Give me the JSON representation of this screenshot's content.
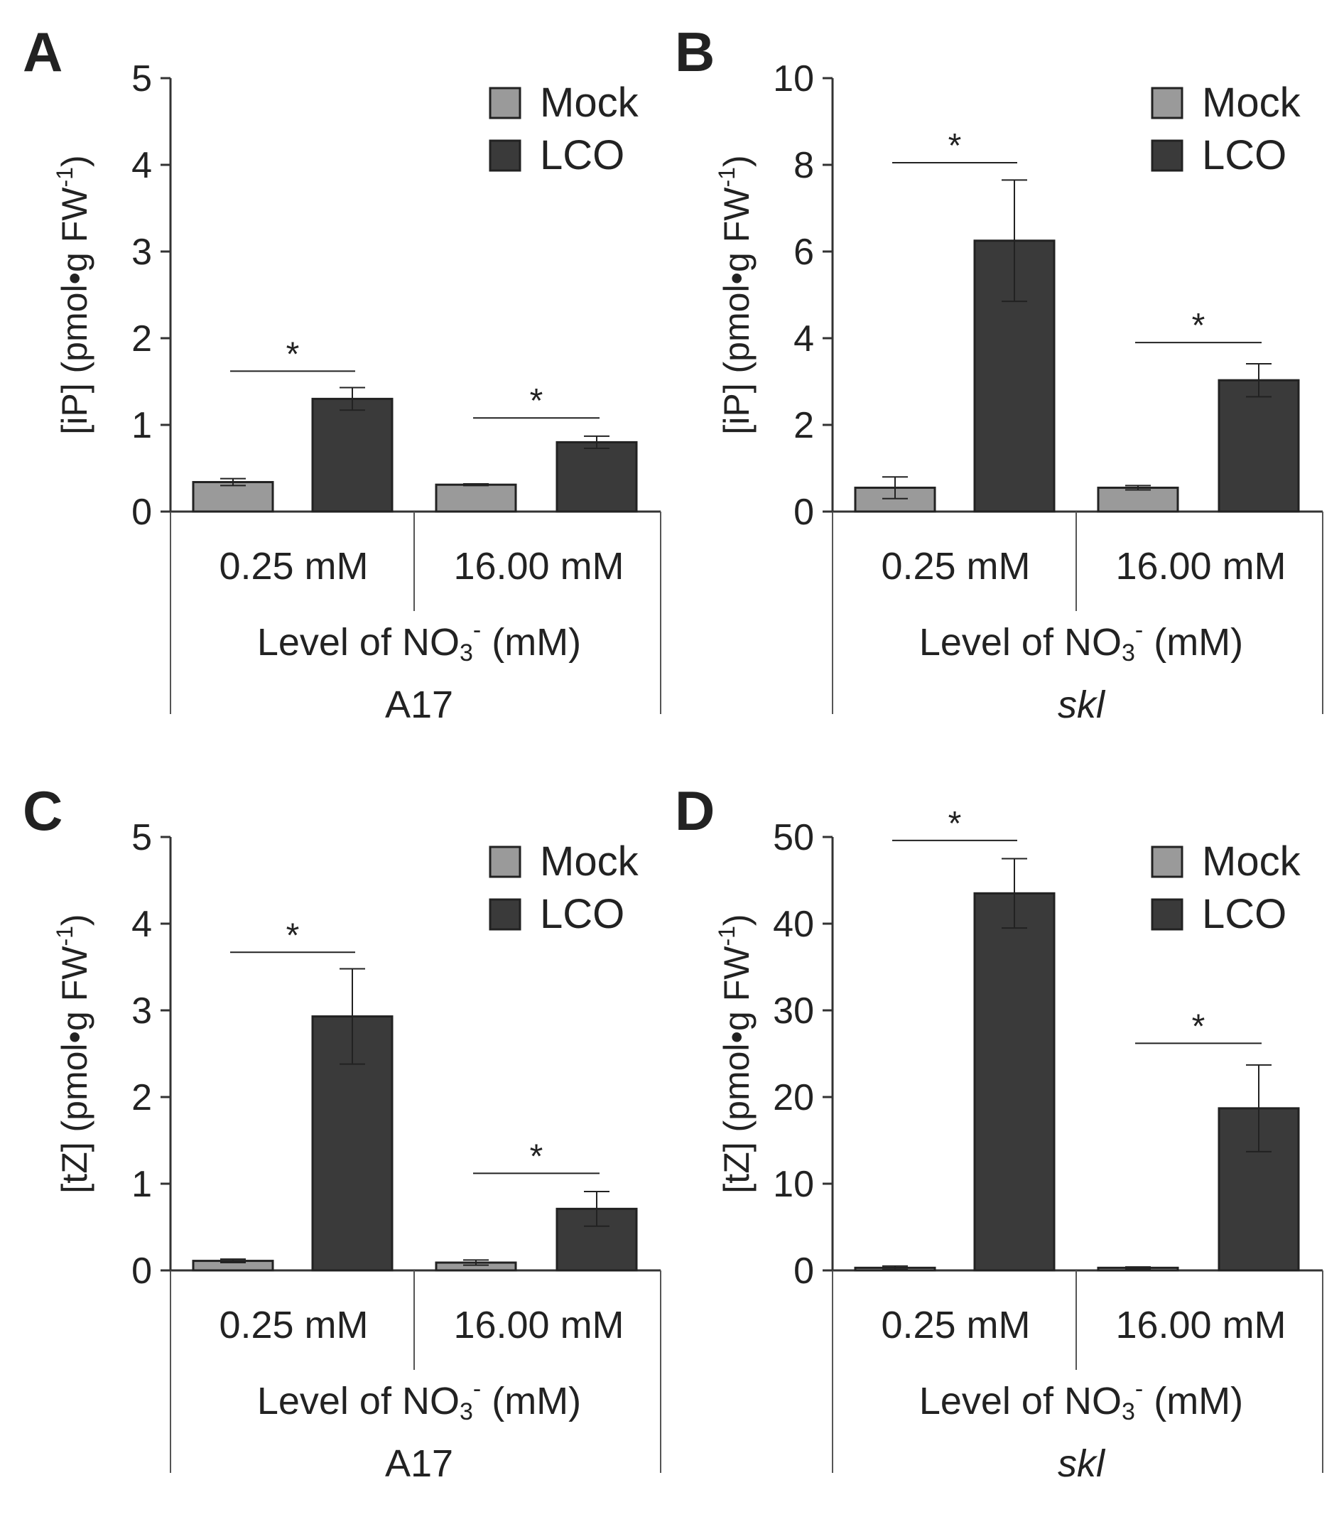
{
  "chart_data": [
    {
      "panel": "A",
      "type": "bar",
      "categories": [
        "0.25 mM",
        "16.00 mM"
      ],
      "series": [
        {
          "name": "Mock",
          "color": "#9a9a9a",
          "values": [
            0.34,
            0.31
          ],
          "errors": [
            0.04,
            0.01
          ]
        },
        {
          "name": "LCO",
          "color": "#3a3a3a",
          "values": [
            1.3,
            0.8
          ],
          "errors": [
            0.13,
            0.07
          ]
        }
      ],
      "ylim": [
        0,
        5
      ],
      "yticks": [
        "0",
        "1",
        "2",
        "3",
        "4",
        "5"
      ],
      "ylabel_main": "[iP] (pmol•g FW",
      "ylabel_sup": "-1",
      "ylabel_end": ")",
      "xlabel_main": "Level of NO",
      "xlabel_sub": "3",
      "xlabel_sup": "-",
      "xlabel_end": " (mM)",
      "group": "A17",
      "group_italic": false,
      "significance": [
        {
          "label": "*",
          "y": 1.62
        },
        {
          "label": "*",
          "y": 1.08
        }
      ],
      "legend": [
        "Mock",
        "LCO"
      ]
    },
    {
      "panel": "B",
      "type": "bar",
      "categories": [
        "0.25 mM",
        "16.00 mM"
      ],
      "series": [
        {
          "name": "Mock",
          "color": "#9a9a9a",
          "values": [
            0.55,
            0.55
          ],
          "errors": [
            0.25,
            0.05
          ]
        },
        {
          "name": "LCO",
          "color": "#3a3a3a",
          "values": [
            6.25,
            3.03
          ],
          "errors": [
            1.4,
            0.38
          ]
        }
      ],
      "ylim": [
        0,
        10
      ],
      "yticks": [
        "0",
        "2",
        "4",
        "6",
        "8",
        "10"
      ],
      "ylabel_main": "[iP] (pmol•g FW",
      "ylabel_sup": "-1",
      "ylabel_end": ")",
      "xlabel_main": "Level of NO",
      "xlabel_sub": "3",
      "xlabel_sup": "-",
      "xlabel_end": " (mM)",
      "group": "skl",
      "group_italic": true,
      "significance": [
        {
          "label": "*",
          "y": 8.05
        },
        {
          "label": "*",
          "y": 3.9
        }
      ],
      "legend": [
        "Mock",
        "LCO"
      ]
    },
    {
      "panel": "C",
      "type": "bar",
      "categories": [
        "0.25 mM",
        "16.00 mM"
      ],
      "series": [
        {
          "name": "Mock",
          "color": "#9a9a9a",
          "values": [
            0.11,
            0.09
          ],
          "errors": [
            0.02,
            0.03
          ]
        },
        {
          "name": "LCO",
          "color": "#3a3a3a",
          "values": [
            2.93,
            0.71
          ],
          "errors": [
            0.55,
            0.2
          ]
        }
      ],
      "ylim": [
        0,
        5
      ],
      "yticks": [
        "0",
        "1",
        "2",
        "3",
        "4",
        "5"
      ],
      "ylabel_main": "[tZ] (pmol•g FW",
      "ylabel_sup": "-1",
      "ylabel_end": ")",
      "xlabel_main": "Level of NO",
      "xlabel_sub": "3",
      "xlabel_sup": "-",
      "xlabel_end": " (mM)",
      "group": "A17",
      "group_italic": false,
      "significance": [
        {
          "label": "*",
          "y": 3.67
        },
        {
          "label": "*",
          "y": 1.12
        }
      ],
      "legend": [
        "Mock",
        "LCO"
      ]
    },
    {
      "panel": "D",
      "type": "bar",
      "categories": [
        "0.25 mM",
        "16.00 mM"
      ],
      "series": [
        {
          "name": "Mock",
          "color": "#9a9a9a",
          "values": [
            0.3,
            0.3
          ],
          "errors": [
            0.2,
            0.1
          ]
        },
        {
          "name": "LCO",
          "color": "#3a3a3a",
          "values": [
            43.5,
            18.7
          ],
          "errors": [
            4.0,
            5.0
          ]
        }
      ],
      "ylim": [
        0,
        50
      ],
      "yticks": [
        "0",
        "10",
        "20",
        "30",
        "40",
        "50"
      ],
      "ylabel_main": "[tZ] (pmol•g FW",
      "ylabel_sup": "-1",
      "ylabel_end": ")",
      "xlabel_main": "Level of NO",
      "xlabel_sub": "3",
      "xlabel_sup": "-",
      "xlabel_end": " (mM)",
      "group": "skl",
      "group_italic": true,
      "significance": [
        {
          "label": "*",
          "y": 49.6
        },
        {
          "label": "*",
          "y": 26.2
        }
      ],
      "legend": [
        "Mock",
        "LCO"
      ]
    }
  ]
}
